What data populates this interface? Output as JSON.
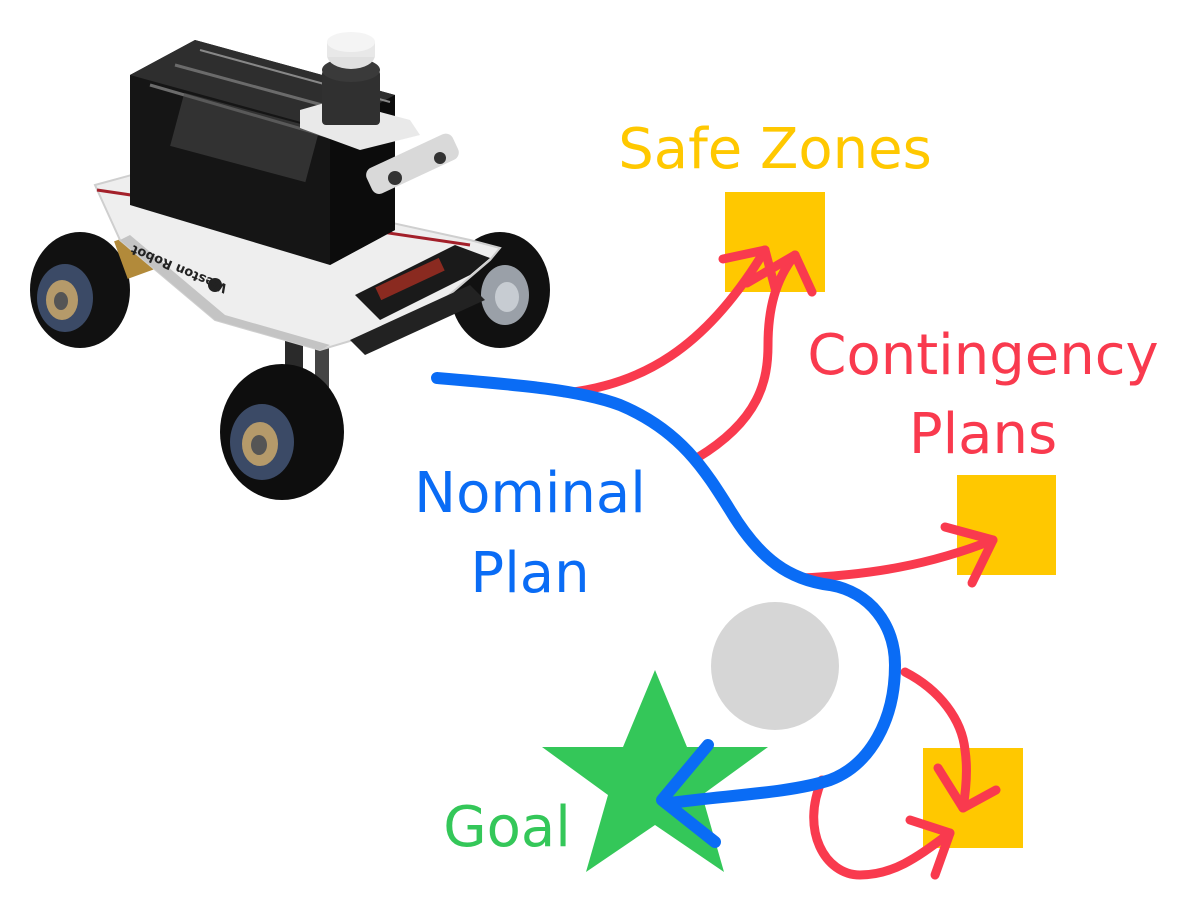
{
  "labels": {
    "safe_zones": "Safe Zones",
    "contingency_line1": "Contingency",
    "contingency_line2": "Plans",
    "nominal_line1": "Nominal",
    "nominal_line2": "Plan",
    "goal": "Goal"
  },
  "robot": {
    "brand_text": "Weston Robot"
  },
  "colors": {
    "safe_zone": "#FFC800",
    "contingency": "#F93A4E",
    "nominal": "#0A6CF5",
    "goal": "#34C759",
    "obstacle": "#D6D6D6"
  }
}
